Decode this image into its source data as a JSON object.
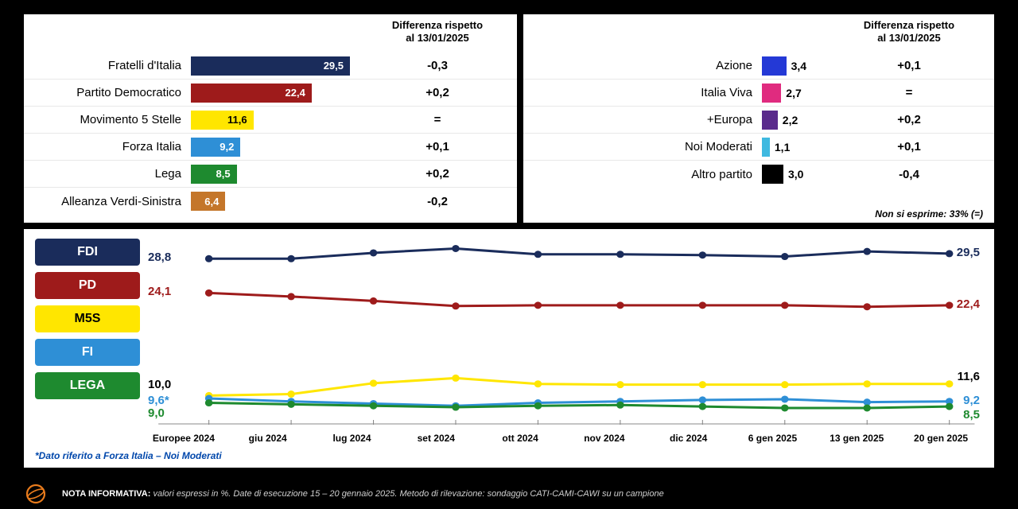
{
  "diff_header_line1": "Differenza rispetto",
  "diff_header_line2": "al 13/01/2025",
  "left_panel": {
    "max_bar": 29.5,
    "rows": [
      {
        "label": "Fratelli d'Italia",
        "value": "29,5",
        "num": 29.5,
        "color": "#1a2c5b",
        "text_color": "#ffffff",
        "inside": true,
        "diff": "-0,3"
      },
      {
        "label": "Partito Democratico",
        "value": "22,4",
        "num": 22.4,
        "color": "#9e1b1b",
        "text_color": "#ffffff",
        "inside": true,
        "diff": "+0,2"
      },
      {
        "label": "Movimento 5 Stelle",
        "value": "11,6",
        "num": 11.6,
        "color": "#ffe600",
        "text_color": "#000000",
        "inside": true,
        "diff": "="
      },
      {
        "label": "Forza Italia",
        "value": "9,2",
        "num": 9.2,
        "color": "#2e8fd6",
        "text_color": "#ffffff",
        "inside": true,
        "diff": "+0,1"
      },
      {
        "label": "Lega",
        "value": "8,5",
        "num": 8.5,
        "color": "#1e8a2f",
        "text_color": "#ffffff",
        "inside": true,
        "diff": "+0,2"
      },
      {
        "label": "Alleanza Verdi-Sinistra",
        "value": "6,4",
        "num": 6.4,
        "color": "#c4762a",
        "text_color": "#ffffff",
        "inside": true,
        "diff": "-0,2"
      }
    ]
  },
  "right_panel": {
    "max_bar": 4.0,
    "rows": [
      {
        "label": "Azione",
        "value": "3,4",
        "num": 3.4,
        "color": "#2439d6",
        "text_color": "#000",
        "inside": false,
        "diff": "+0,1"
      },
      {
        "label": "Italia Viva",
        "value": "2,7",
        "num": 2.7,
        "color": "#e02b7f",
        "text_color": "#000",
        "inside": false,
        "diff": "="
      },
      {
        "label": "+Europa",
        "value": "2,2",
        "num": 2.2,
        "color": "#5a2b8c",
        "text_color": "#000",
        "inside": false,
        "diff": "+0,2"
      },
      {
        "label": "Noi Moderati",
        "value": "1,1",
        "num": 1.1,
        "color": "#3fb9e0",
        "text_color": "#000",
        "inside": false,
        "diff": "+0,1"
      },
      {
        "label": "Altro partito",
        "value": "3,0",
        "num": 3.0,
        "color": "#000000",
        "text_color": "#000",
        "inside": false,
        "diff": "-0,4"
      }
    ],
    "no_express": "Non si esprime: 33% (=)"
  },
  "trend": {
    "legend": [
      {
        "label": "FDI",
        "color": "#1a2c5b",
        "light": false
      },
      {
        "label": "PD",
        "color": "#9e1b1b",
        "light": false
      },
      {
        "label": "M5S",
        "color": "#ffe600",
        "light": true
      },
      {
        "label": "FI",
        "color": "#2e8fd6",
        "light": false
      },
      {
        "label": "LEGA",
        "color": "#1e8a2f",
        "light": false
      }
    ],
    "x_labels": [
      "Europee 2024",
      "giu 2024",
      "lug 2024",
      "set 2024",
      "ott 2024",
      "nov 2024",
      "dic 2024",
      "6 gen 2025",
      "13 gen 2025",
      "20 gen 2025"
    ],
    "y_min": 6,
    "y_max": 32,
    "series": [
      {
        "key": "FDI",
        "color": "#1a2c5b",
        "vals": [
          28.8,
          28.8,
          29.6,
          30.2,
          29.4,
          29.4,
          29.3,
          29.1,
          29.8,
          29.5
        ]
      },
      {
        "key": "PD",
        "color": "#9e1b1b",
        "vals": [
          24.1,
          23.6,
          23.0,
          22.3,
          22.4,
          22.4,
          22.4,
          22.4,
          22.2,
          22.4
        ]
      },
      {
        "key": "M5S",
        "color": "#ffe600",
        "vals": [
          10.0,
          10.2,
          11.7,
          12.4,
          11.6,
          11.5,
          11.5,
          11.5,
          11.6,
          11.6
        ]
      },
      {
        "key": "FI",
        "color": "#2e8fd6",
        "vals": [
          9.6,
          9.2,
          8.9,
          8.6,
          9.0,
          9.2,
          9.4,
          9.5,
          9.1,
          9.2
        ]
      },
      {
        "key": "LEGA",
        "color": "#1e8a2f",
        "vals": [
          9.0,
          8.8,
          8.6,
          8.4,
          8.6,
          8.7,
          8.5,
          8.3,
          8.3,
          8.5
        ]
      }
    ],
    "start_labels": [
      {
        "text": "28,8",
        "y_val": 28.8,
        "color": "#1a2c5b"
      },
      {
        "text": "24,1",
        "y_val": 24.1,
        "color": "#9e1b1b"
      },
      {
        "text": "10,0",
        "y_val": 11.4,
        "color": "#000000"
      },
      {
        "text": "9,6*",
        "y_val": 9.2,
        "color": "#2e8fd6"
      },
      {
        "text": "9,0",
        "y_val": 7.4,
        "color": "#1e8a2f"
      }
    ],
    "end_labels": [
      {
        "text": "29,5",
        "y_val": 29.5,
        "color": "#1a2c5b"
      },
      {
        "text": "22,4",
        "y_val": 22.4,
        "color": "#9e1b1b"
      },
      {
        "text": "11,6",
        "y_val": 12.4,
        "color": "#000000"
      },
      {
        "text": "9,2",
        "y_val": 9.2,
        "color": "#2e8fd6"
      },
      {
        "text": "8,5",
        "y_val": 7.2,
        "color": "#1e8a2f"
      }
    ],
    "footnote": "*Dato riferito a Forza Italia – Noi Moderati"
  },
  "bottom": {
    "brand": "SWG",
    "nota_label": "NOTA INFORMATIVA:",
    "nota_text": "valori espressi in %. Date di esecuzione 15 – 20 gennaio 2025. Metodo di rilevazione: sondaggio CATI-CAMI-CAWI su un campione"
  }
}
